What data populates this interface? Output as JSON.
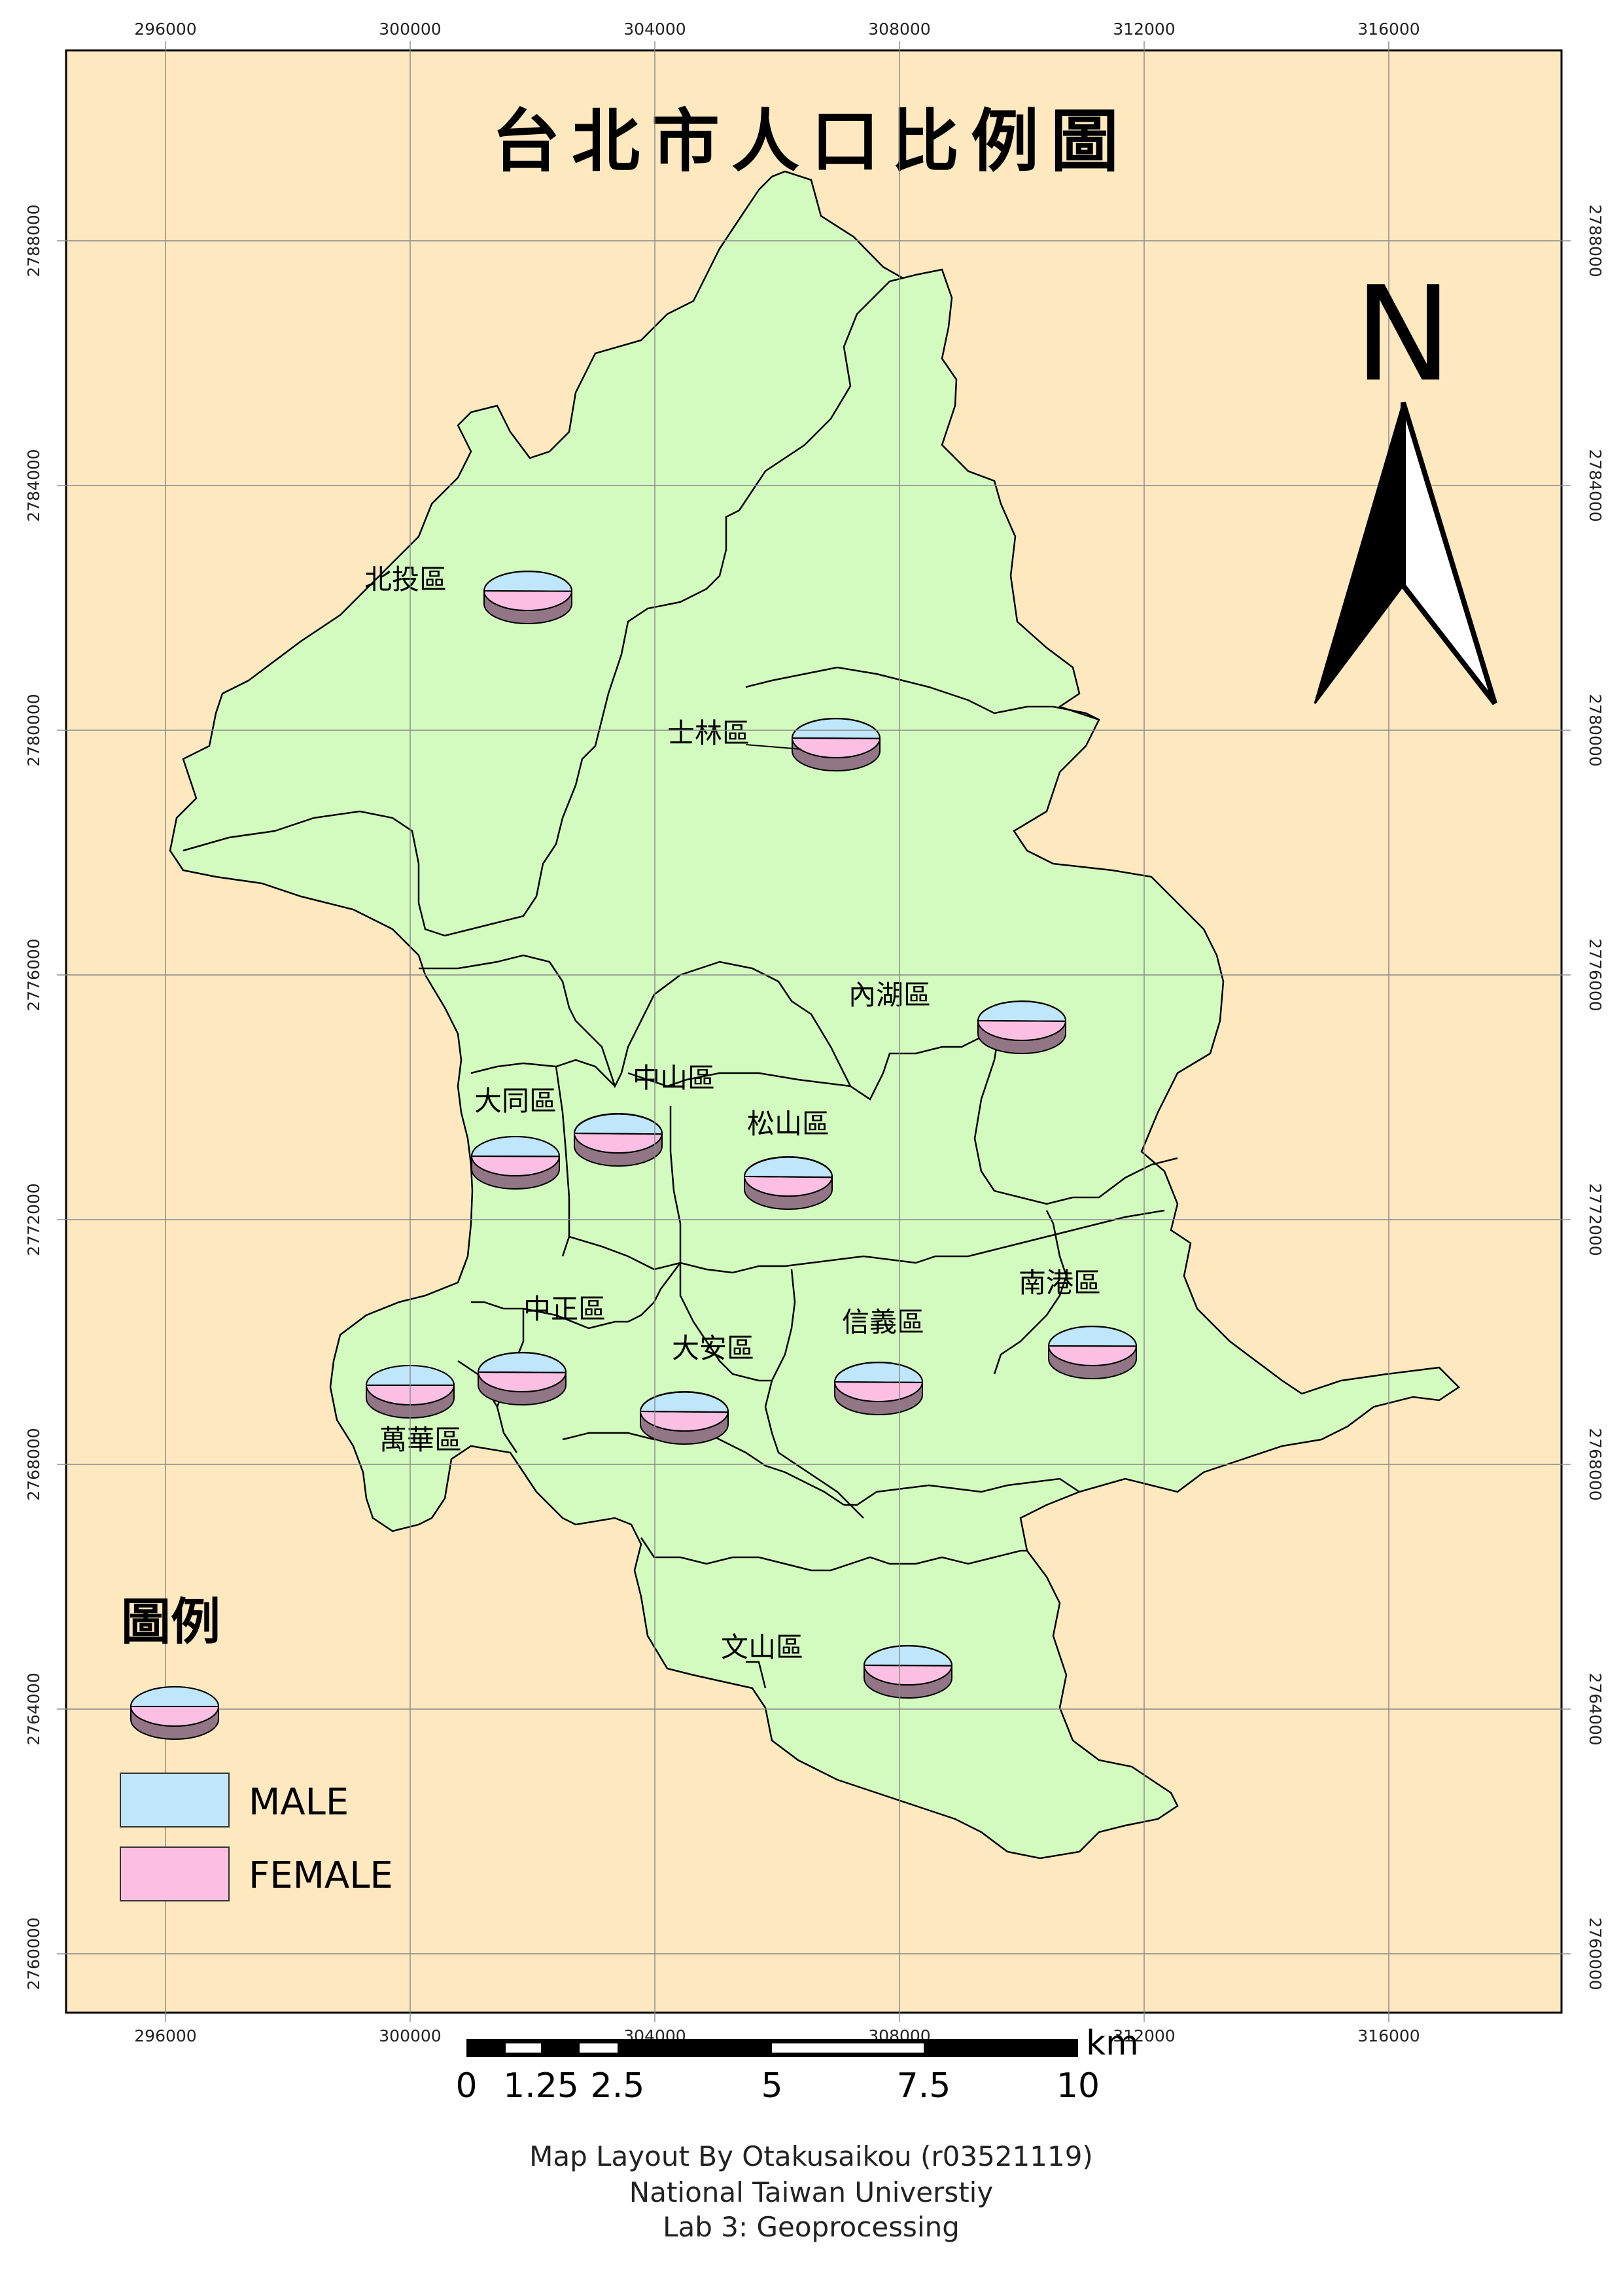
{
  "title": "台北市人口比例圖",
  "north_arrow": {
    "label": "N"
  },
  "grid": {
    "x_ticks": [
      "296000",
      "300000",
      "304000",
      "308000",
      "312000",
      "316000"
    ],
    "y_ticks": [
      "2788000",
      "2784000",
      "2780000",
      "2776000",
      "2772000",
      "2768000",
      "2764000",
      "2760000"
    ]
  },
  "districts": [
    {
      "name": "北投區",
      "male": 0.485,
      "female": 0.515
    },
    {
      "name": "士林區",
      "male": 0.483,
      "female": 0.517
    },
    {
      "name": "內湖區",
      "male": 0.48,
      "female": 0.52
    },
    {
      "name": "大同區",
      "male": 0.492,
      "female": 0.508
    },
    {
      "name": "中山區",
      "male": 0.47,
      "female": 0.53
    },
    {
      "name": "松山區",
      "male": 0.47,
      "female": 0.53
    },
    {
      "name": "中正區",
      "male": 0.48,
      "female": 0.52
    },
    {
      "name": "大安區",
      "male": 0.47,
      "female": 0.53
    },
    {
      "name": "信義區",
      "male": 0.48,
      "female": 0.52
    },
    {
      "name": "南港區",
      "male": 0.49,
      "female": 0.51
    },
    {
      "name": "萬華區",
      "male": 0.5,
      "female": 0.5
    },
    {
      "name": "文山區",
      "male": 0.48,
      "female": 0.52
    }
  ],
  "legend": {
    "title": "圖例",
    "items": [
      {
        "label": "MALE",
        "color": "#bfe6fb"
      },
      {
        "label": "FEMALE",
        "color": "#fbbfe4"
      }
    ]
  },
  "scale_bar": {
    "unit": "km",
    "labels": [
      "0",
      "1.25",
      "2.5",
      "5",
      "7.5",
      "10"
    ]
  },
  "credits": {
    "line1": "Map Layout By Otakusaikou (r03521119)",
    "line2": "National Taiwan Universtiy",
    "line3": "Lab 3: Geoprocessing"
  },
  "colors": {
    "background": "#fde8c0",
    "land": "#d4fbbf",
    "pie_side": "#927685"
  }
}
